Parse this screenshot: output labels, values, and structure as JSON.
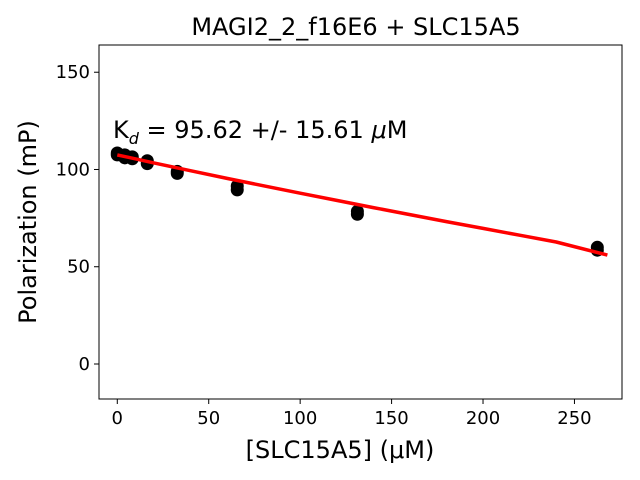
{
  "chart_data": {
    "type": "scatter",
    "title": "MAGI2_2_f16E6 + SLC15A5",
    "xlabel": "[SLC15A5] (μM)",
    "ylabel": "Polarization (mP)",
    "xlim": [
      -10,
      276
    ],
    "ylim": [
      -18,
      164
    ],
    "xticks": [
      0,
      50,
      100,
      150,
      200,
      250
    ],
    "yticks": [
      0,
      50,
      100,
      150
    ],
    "grid": false,
    "annotation": {
      "main": "K",
      "sub": "d",
      "value": " = 95.62 +/- 15.61 ",
      "mu": "μ",
      "unit": "M"
    },
    "series": [
      {
        "marker_color": "#000000",
        "points": [
          {
            "x": 0,
            "y": 108.5
          },
          {
            "x": 0,
            "y": 107.5
          },
          {
            "x": 4.1,
            "y": 107.5
          },
          {
            "x": 4.1,
            "y": 106.0
          },
          {
            "x": 8.2,
            "y": 106.5
          },
          {
            "x": 8.2,
            "y": 105.5
          },
          {
            "x": 16.4,
            "y": 104.5
          },
          {
            "x": 16.4,
            "y": 103.0
          },
          {
            "x": 32.8,
            "y": 99.0
          },
          {
            "x": 32.8,
            "y": 98.0
          },
          {
            "x": 65.6,
            "y": 91.5
          },
          {
            "x": 65.6,
            "y": 89.5
          },
          {
            "x": 131.3,
            "y": 78.5
          },
          {
            "x": 131.3,
            "y": 77.0
          },
          {
            "x": 262.5,
            "y": 60.0
          },
          {
            "x": 262.5,
            "y": 58.5
          }
        ]
      },
      {
        "line_color": "#ff0000",
        "fit": {
          "x": [
            0,
            20,
            40,
            60,
            80,
            100,
            120,
            140,
            160,
            180,
            200,
            220,
            240,
            268
          ],
          "y": [
            107.5,
            103.4,
            99.4,
            95.4,
            91.6,
            87.8,
            84.1,
            80.4,
            76.8,
            73.2,
            69.7,
            66.2,
            62.7,
            56.0
          ]
        }
      }
    ]
  }
}
